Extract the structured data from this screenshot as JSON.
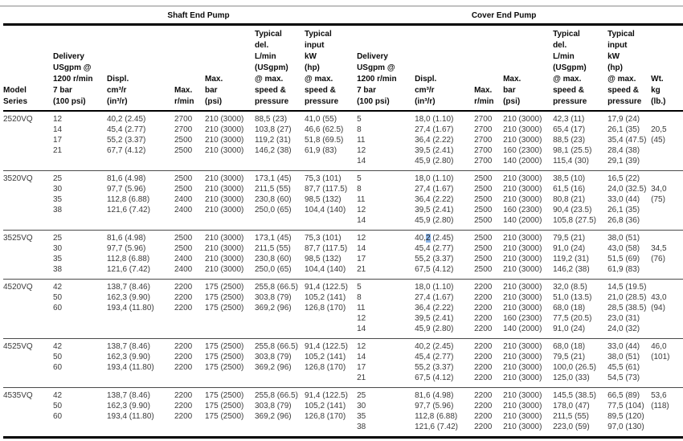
{
  "table": {
    "section_headers": [
      "Shaft End Pump",
      "Cover End Pump"
    ],
    "selection_color": "#8ab4e8",
    "columns": [
      {
        "id": "model-series",
        "label": [
          "Model",
          "Series"
        ]
      },
      {
        "id": "shaft-delivery",
        "label": [
          "Delivery",
          "USgpm @",
          "1200 r/min",
          "7 bar",
          "(100 psi)"
        ]
      },
      {
        "id": "shaft-displacement",
        "label": [
          "Displ.",
          "cm³/r",
          "(in³/r)"
        ]
      },
      {
        "id": "shaft-max-rpm",
        "label": [
          "Max.",
          "r/min"
        ]
      },
      {
        "id": "shaft-max-pressure",
        "label": [
          "Max.",
          "bar",
          "(psi)"
        ]
      },
      {
        "id": "shaft-typical-delivery",
        "label": [
          "Typical",
          "del.",
          "L/min",
          "(USgpm)",
          "@ max.",
          "speed &",
          "pressure"
        ]
      },
      {
        "id": "shaft-typical-input",
        "label": [
          "Typical",
          "input",
          "kW",
          "(hp)",
          "@ max.",
          "speed &",
          "pressure"
        ]
      },
      {
        "id": "cover-delivery",
        "label": [
          "Delivery",
          "USgpm @",
          "1200 r/min",
          "7 bar",
          "(100 psi)"
        ]
      },
      {
        "id": "cover-displacement",
        "label": [
          "Displ.",
          "cm³/r",
          "(in³/r)"
        ]
      },
      {
        "id": "cover-max-rpm",
        "label": [
          "Max.",
          "r/min"
        ]
      },
      {
        "id": "cover-max-pressure",
        "label": [
          "Max.",
          "bar",
          "(psi)"
        ]
      },
      {
        "id": "cover-typical-delivery",
        "label": [
          "Typical",
          "del.",
          "L/min",
          "(USgpm)",
          "@ max.",
          "speed &",
          "pressure"
        ]
      },
      {
        "id": "cover-typical-input",
        "label": [
          "Typical",
          "input",
          "kW",
          "(hp)",
          "@ max.",
          "speed &",
          "pressure"
        ]
      },
      {
        "id": "weight",
        "label": [
          "Wt.",
          "kg",
          "(lb.)"
        ]
      }
    ],
    "groups": [
      {
        "model": "2520VQ",
        "rows": [
          {
            "shaft": [
              "12",
              "40,2 (2.45)",
              "2700",
              "210 (3000)",
              "88,5 (23)",
              "41,0 (55)"
            ],
            "cover": [
              "5",
              "18,0 (1.10)",
              "2700",
              "210 (3000)",
              "42,3 (11)",
              "17,9 (24)"
            ],
            "wt": ""
          },
          {
            "shaft": [
              "14",
              "45,4 (2.77)",
              "2700",
              "210 (3000)",
              "103,8 (27)",
              "46,6 (62.5)"
            ],
            "cover": [
              "8",
              "27,4 (1.67)",
              "2700",
              "210 (3000)",
              "65,4 (17)",
              "26,1 (35)"
            ],
            "wt": "20,5"
          },
          {
            "shaft": [
              "17",
              "55,2 (3.37)",
              "2500",
              "210 (3000)",
              "119,2 (31)",
              "51,8 (69.5)"
            ],
            "cover": [
              "11",
              "36,4 (2.22)",
              "2700",
              "210 (3000)",
              "88,5 (23)",
              "35,4 (47.5)"
            ],
            "wt": "(45)"
          },
          {
            "shaft": [
              "21",
              "67,7 (4.12)",
              "2500",
              "210 (3000)",
              "146,2 (38)",
              "61,9 (83)"
            ],
            "cover": [
              "12",
              "39,5 (2.41)",
              "2700",
              "160 (2300)",
              "98,1 (25.5)",
              "28,4 (38)"
            ],
            "wt": ""
          },
          {
            "shaft": [
              "",
              "",
              "",
              "",
              "",
              ""
            ],
            "cover": [
              "14",
              "45,9 (2.80)",
              "2700",
              "140 (2000)",
              "115,4 (30)",
              "29,1 (39)"
            ],
            "wt": ""
          }
        ]
      },
      {
        "model": "3520VQ",
        "rows": [
          {
            "shaft": [
              "25",
              "81,6 (4.98)",
              "2500",
              "210 (3000)",
              "173,1 (45)",
              "75,3 (101)"
            ],
            "cover": [
              "5",
              "18,0 (1.10)",
              "2500",
              "210 (3000)",
              "38,5 (10)",
              "16,5 (22)"
            ],
            "wt": ""
          },
          {
            "shaft": [
              "30",
              "97,7 (5.96)",
              "2500",
              "210 (3000)",
              "211,5 (55)",
              "87,7 (117.5)"
            ],
            "cover": [
              "8",
              "27,4 (1.67)",
              "2500",
              "210 (3000)",
              "61,5 (16)",
              "24,0 (32.5)"
            ],
            "wt": "34,0"
          },
          {
            "shaft": [
              "35",
              "112,8 (6.88)",
              "2400",
              "210 (3000)",
              "230,8 (60)",
              "98,5 (132)"
            ],
            "cover": [
              "11",
              "36,4 (2.22)",
              "2500",
              "210 (3000)",
              "80,8 (21)",
              "33,0 (44)"
            ],
            "wt": "(75)"
          },
          {
            "shaft": [
              "38",
              "121,6 (7.42)",
              "2400",
              "210 (3000)",
              "250,0 (65)",
              "104,4 (140)"
            ],
            "cover": [
              "12",
              "39,5 (2.41)",
              "2500",
              "160 (2300)",
              "90,4 (23.5)",
              "26,1 (35)"
            ],
            "wt": ""
          },
          {
            "shaft": [
              "",
              "",
              "",
              "",
              "",
              ""
            ],
            "cover": [
              "14",
              "45,9 (2.80)",
              "2500",
              "140 (2000)",
              "105,8 (27.5)",
              "26,8 (36)"
            ],
            "wt": ""
          }
        ]
      },
      {
        "model": "3525VQ",
        "rows": [
          {
            "shaft": [
              "25",
              "81,6 (4.98)",
              "2500",
              "210 (3000)",
              "173,1 (45)",
              "75,3 (101)"
            ],
            "cover": [
              "12",
              {
                "pre": "40,",
                "hl": "2",
                "post": " (2.45)"
              },
              "2500",
              "210 (3000)",
              "79,5 (21)",
              "38,0 (51)"
            ],
            "wt": ""
          },
          {
            "shaft": [
              "30",
              "97,7 (5.96)",
              "2500",
              "210 (3000)",
              "211,5 (55)",
              "87,7 (117.5)"
            ],
            "cover": [
              "14",
              "45,4 (2.77)",
              "2500",
              "210 (3000)",
              "91,0 (24)",
              "43,0 (58)"
            ],
            "wt": "34,5"
          },
          {
            "shaft": [
              "35",
              "112,8 (6.88)",
              "2400",
              "210 (3000)",
              "230,8 (60)",
              "98,5 (132)"
            ],
            "cover": [
              "17",
              "55,2 (3.37)",
              "2500",
              "210 (3000)",
              "119,2 (31)",
              "51,5 (69)"
            ],
            "wt": "(76)"
          },
          {
            "shaft": [
              "38",
              "121,6 (7.42)",
              "2400",
              "210 (3000)",
              "250,0 (65)",
              "104,4 (140)"
            ],
            "cover": [
              "21",
              "67,5 (4.12)",
              "2500",
              "210 (3000)",
              "146,2 (38)",
              "61,9 (83)"
            ],
            "wt": ""
          }
        ]
      },
      {
        "model": "4520VQ",
        "rows": [
          {
            "shaft": [
              "42",
              "138,7 (8.46)",
              "2200",
              "175 (2500)",
              "255,8 (66.5)",
              "91,4 (122.5)"
            ],
            "cover": [
              "5",
              "18,0 (1.10)",
              "2200",
              "210 (3000)",
              "32,0 (8.5)",
              "14,5 (19.5)"
            ],
            "wt": ""
          },
          {
            "shaft": [
              "50",
              "162,3 (9.90)",
              "2200",
              "175 (2500)",
              "303,8 (79)",
              "105,2 (141)"
            ],
            "cover": [
              "8",
              "27,4 (1.67)",
              "2200",
              "210 (3000)",
              "51,0 (13.5)",
              "21,0 (28.5)"
            ],
            "wt": "43,0"
          },
          {
            "shaft": [
              "60",
              "193,4 (11.80)",
              "2200",
              "175 (2500)",
              "369,2 (96)",
              "126,8 (170)"
            ],
            "cover": [
              "11",
              "36,4 (2.22)",
              "2200",
              "210 (3000)",
              "68,0 (18)",
              "28,5 (38.5)"
            ],
            "wt": "(94)"
          },
          {
            "shaft": [
              "",
              "",
              "",
              "",
              "",
              ""
            ],
            "cover": [
              "12",
              "39,5 (2.41)",
              "2200",
              "160 (2300)",
              "77,5 (20.5)",
              "23,0 (31)"
            ],
            "wt": ""
          },
          {
            "shaft": [
              "",
              "",
              "",
              "",
              "",
              ""
            ],
            "cover": [
              "14",
              "45,9 (2.80)",
              "2200",
              "140 (2000)",
              "91,0 (24)",
              "24,0 (32)"
            ],
            "wt": ""
          }
        ]
      },
      {
        "model": "4525VQ",
        "rows": [
          {
            "shaft": [
              "42",
              "138,7 (8.46)",
              "2200",
              "175 (2500)",
              "255,8 (66.5)",
              "91,4 (122.5)"
            ],
            "cover": [
              "12",
              "40,2 (2.45)",
              "2200",
              "210 (3000)",
              "68,0 (18)",
              "33,0 (44)"
            ],
            "wt": "46,0"
          },
          {
            "shaft": [
              "50",
              "162,3 (9.90)",
              "2200",
              "175 (2500)",
              "303,8 (79)",
              "105,2 (141)"
            ],
            "cover": [
              "14",
              "45,4 (2.77)",
              "2200",
              "210 (3000)",
              "79,5 (21)",
              "38,0 (51)"
            ],
            "wt": "(101)"
          },
          {
            "shaft": [
              "60",
              "193,4 (11.80)",
              "2200",
              "175 (2500)",
              "369,2 (96)",
              "126,8 (170)"
            ],
            "cover": [
              "17",
              "55,2 (3.37)",
              "2200",
              "210 (3000)",
              "100,0 (26.5)",
              "45,5 (61)"
            ],
            "wt": ""
          },
          {
            "shaft": [
              "",
              "",
              "",
              "",
              "",
              ""
            ],
            "cover": [
              "21",
              "67,5 (4.12)",
              "2200",
              "210 (3000)",
              "125,0 (33)",
              "54,5 (73)"
            ],
            "wt": ""
          }
        ]
      },
      {
        "model": "4535VQ",
        "rows": [
          {
            "shaft": [
              "42",
              "138,7 (8.46)",
              "2200",
              "175 (2500)",
              "255,8 (66.5)",
              "91,4 (122.5)"
            ],
            "cover": [
              "25",
              "81,6 (4.98)",
              "2200",
              "210 (3000)",
              "145,5 (38.5)",
              "66,5 (89)"
            ],
            "wt": "53,6"
          },
          {
            "shaft": [
              "50",
              "162,3 (9.90)",
              "2200",
              "175 (2500)",
              "303,8 (79)",
              "105,2 (141)"
            ],
            "cover": [
              "30",
              "97,7 (5.96)",
              "2200",
              "210 (3000)",
              "178,0 (47)",
              "77,5 (104)"
            ],
            "wt": "(118)"
          },
          {
            "shaft": [
              "60",
              "193,4 (11.80)",
              "2200",
              "175 (2500)",
              "369,2 (96)",
              "126,8 (170)"
            ],
            "cover": [
              "35",
              "112,8 (6.88)",
              "2200",
              "210 (3000)",
              "211,5 (55)",
              "89,5 (120)"
            ],
            "wt": ""
          },
          {
            "shaft": [
              "",
              "",
              "",
              "",
              "",
              ""
            ],
            "cover": [
              "38",
              "121,6 (7.42)",
              "2200",
              "210 (3000)",
              "223,0 (59)",
              "97,0 (130)"
            ],
            "wt": ""
          }
        ]
      }
    ]
  }
}
